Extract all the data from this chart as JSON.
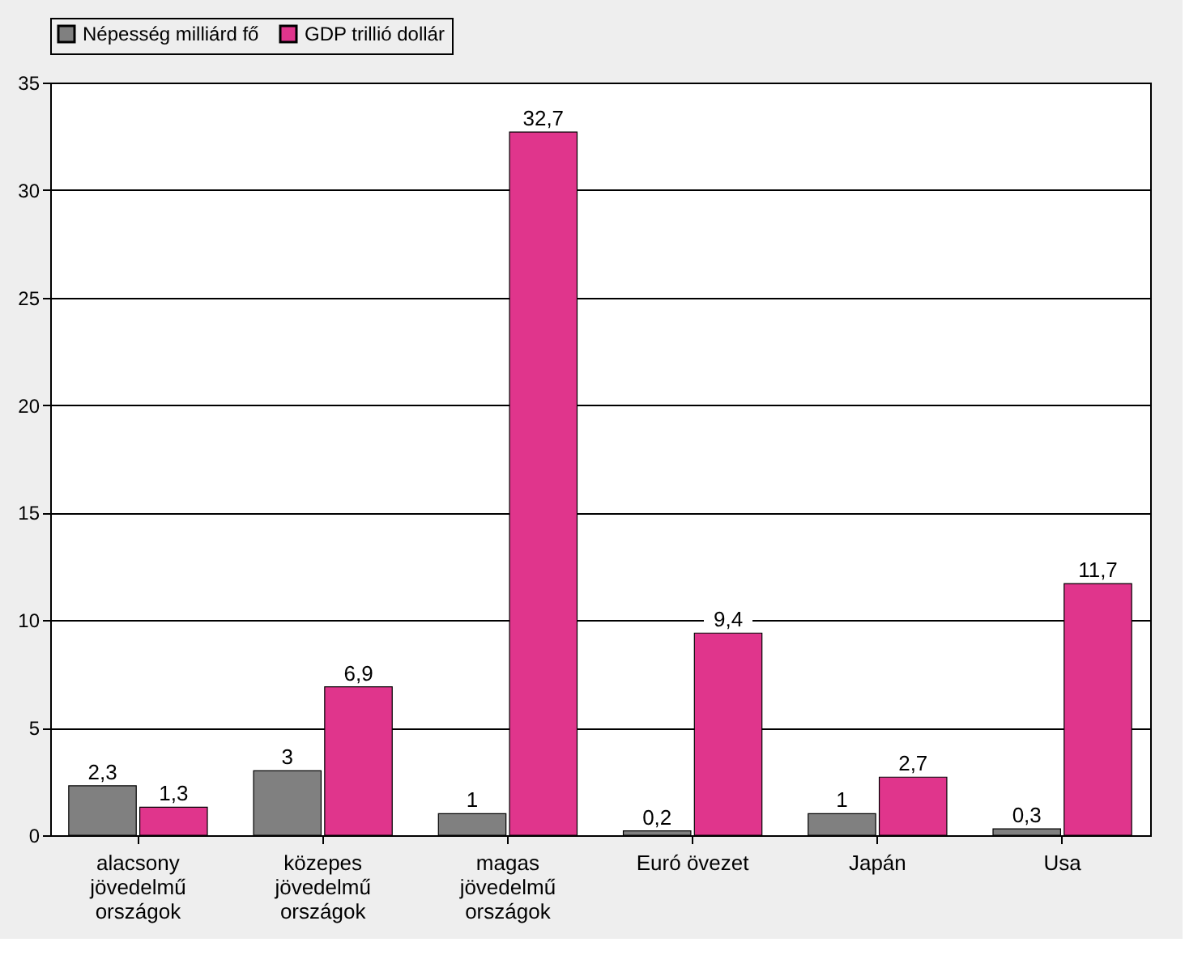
{
  "chart_data": {
    "type": "bar",
    "categories": [
      "alacsony jövedelmű országok",
      "közepes jövedelmű országok",
      "magas jövedelmű országok",
      "Euró övezet",
      "Japán",
      "Usa"
    ],
    "series": [
      {
        "name": "Népesség milliárd fő",
        "color": "#808080",
        "values": [
          2.3,
          3,
          1,
          0.2,
          1,
          0.3
        ],
        "value_labels": [
          "2,3",
          "3",
          "1",
          "0,2",
          "1",
          "0,3"
        ]
      },
      {
        "name": "GDP trillió dollár",
        "color": "#e0358c",
        "values": [
          1.3,
          6.9,
          32.7,
          9.4,
          2.7,
          11.7
        ],
        "value_labels": [
          "1,3",
          "6,9",
          "32,7",
          "9,4",
          "2,7",
          "11,7"
        ]
      }
    ],
    "ylim": [
      0,
      35
    ],
    "yticks": [
      0,
      5,
      10,
      15,
      20,
      25,
      30,
      35
    ],
    "grid": "y",
    "legend": "top"
  }
}
